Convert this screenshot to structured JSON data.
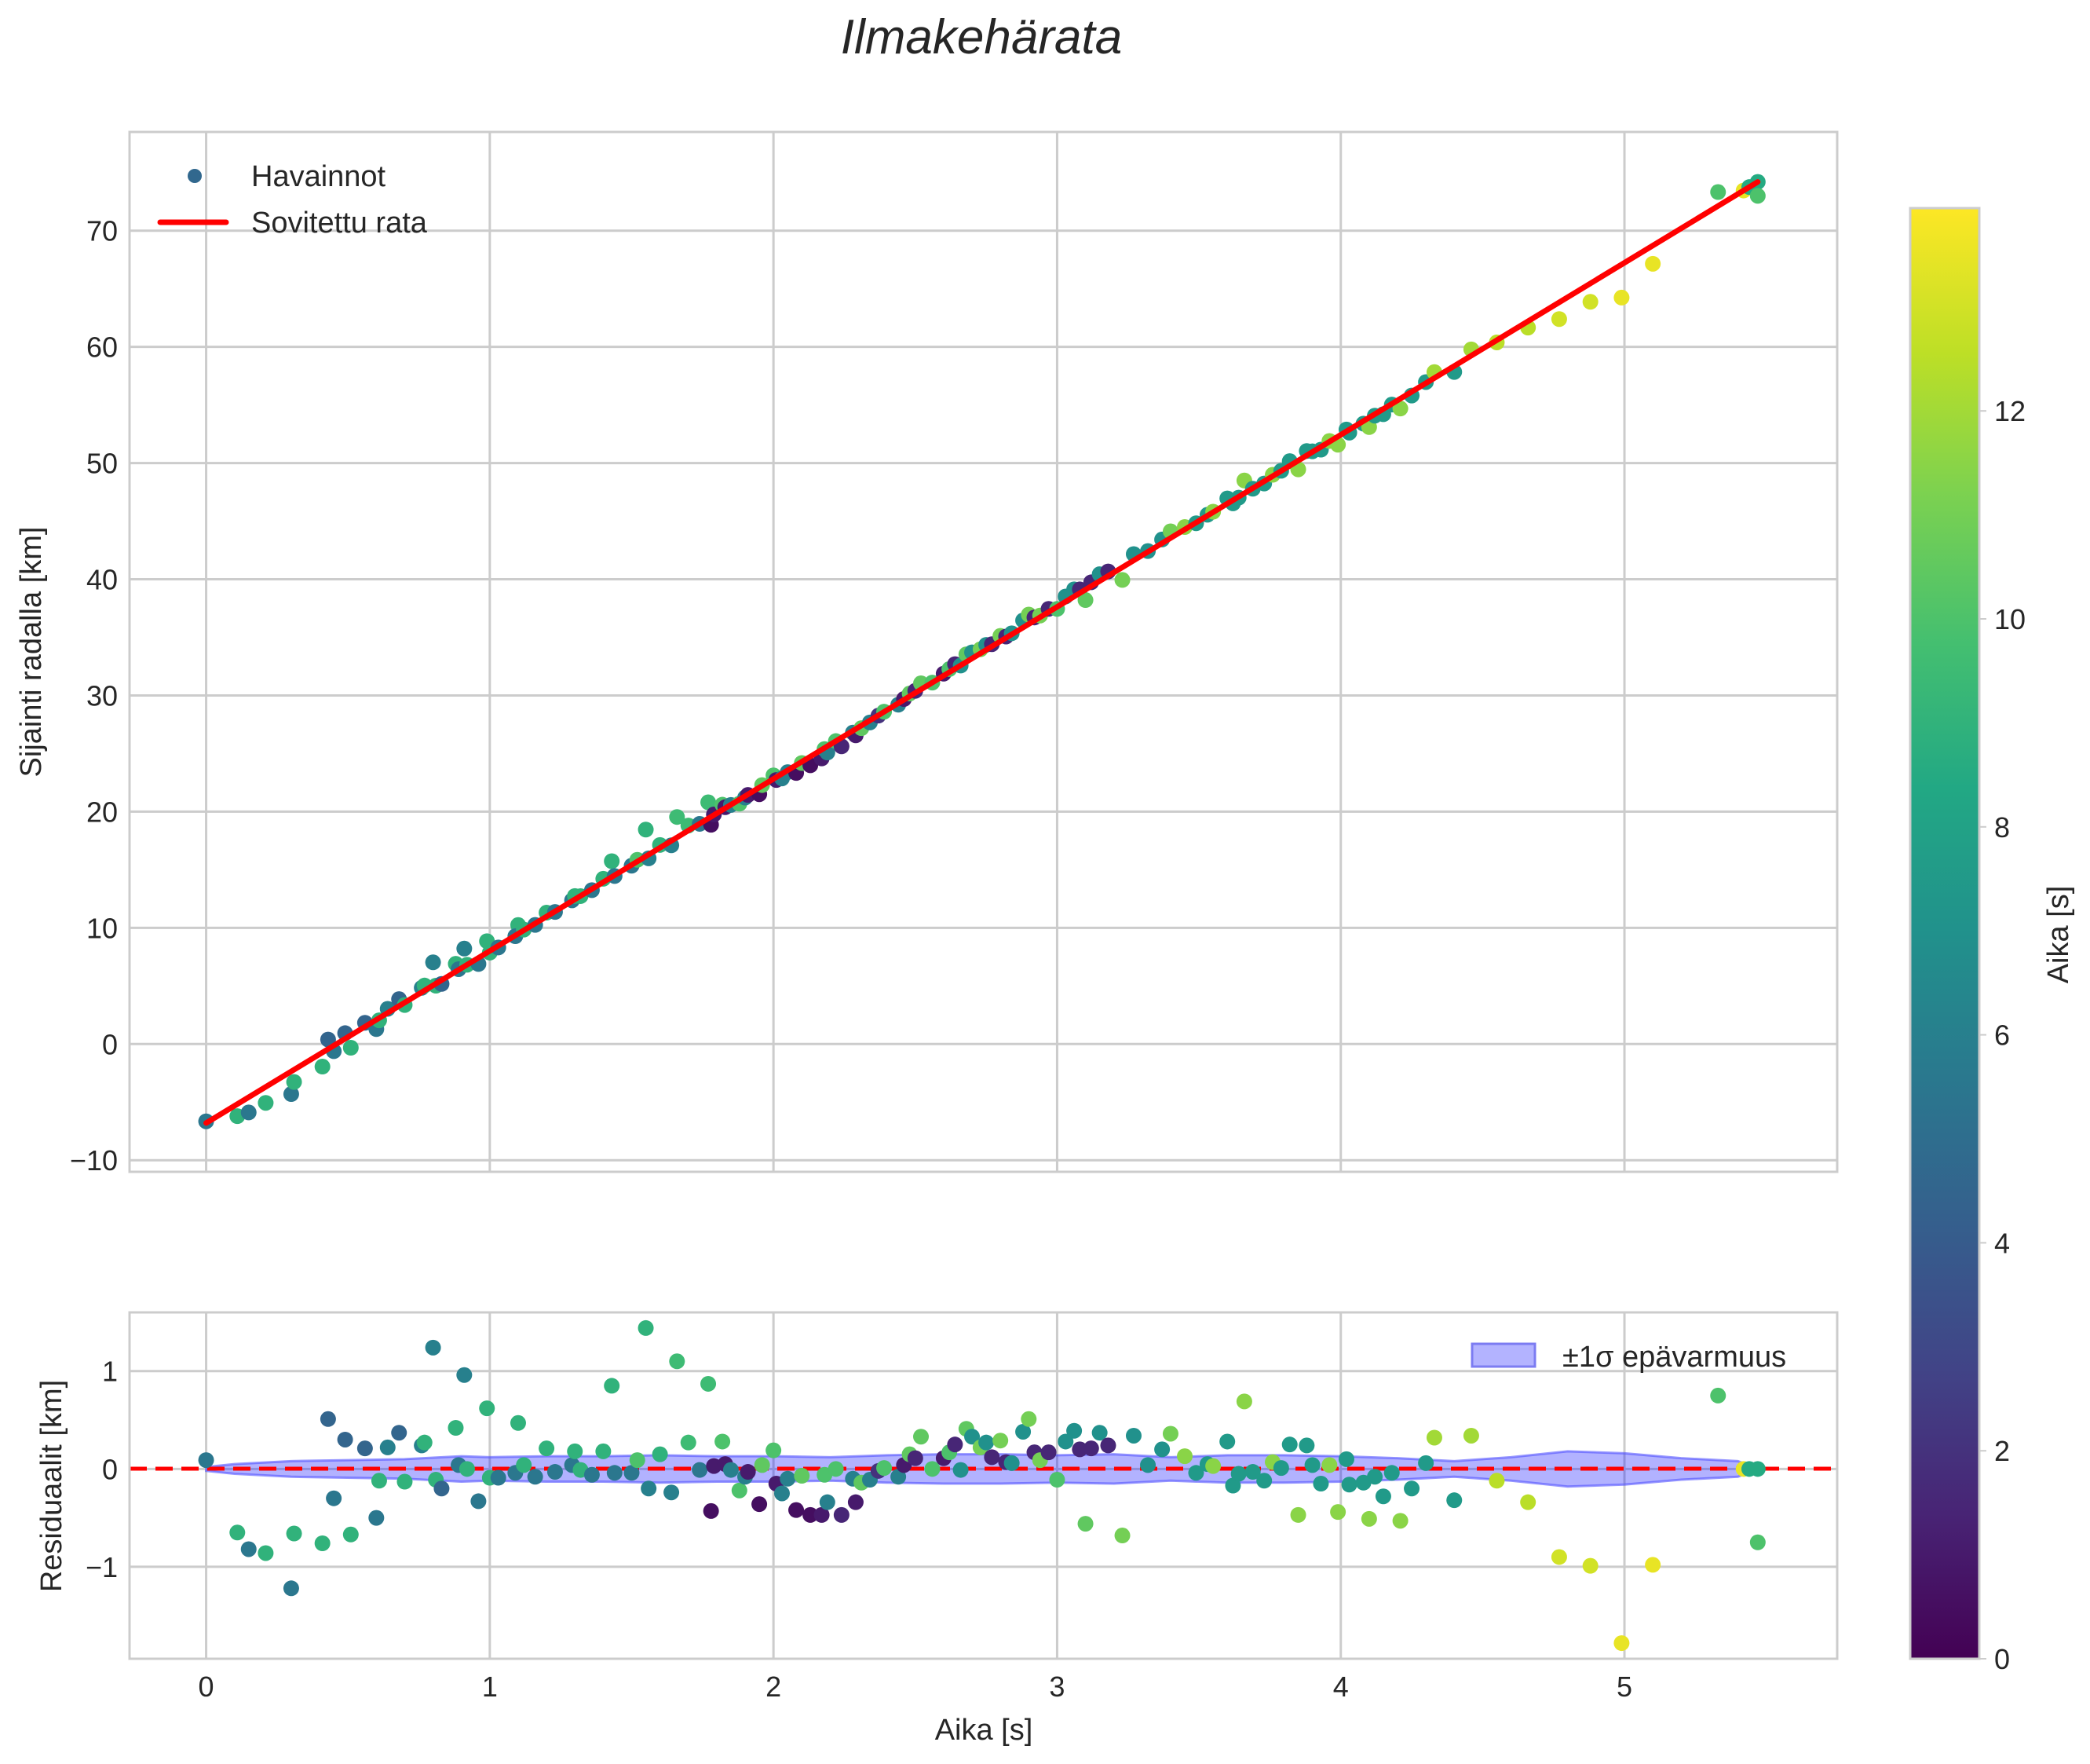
{
  "title": "Ilmakehärata",
  "chart_data": [
    {
      "type": "scatter",
      "panel": "main",
      "title": "Ilmakehärata",
      "xlabel": "",
      "ylabel": "Sijainti radalla [km]",
      "xlim": [
        -0.27,
        5.75
      ],
      "ylim": [
        -11,
        78.5
      ],
      "xticks": [
        0,
        1,
        2,
        3,
        4,
        5
      ],
      "yticks": [
        -10,
        0,
        10,
        20,
        30,
        40,
        50,
        60,
        70
      ],
      "grid": true,
      "legend": {
        "position": "upper left",
        "entries": [
          "Havainnot",
          "Sovitettu rata"
        ]
      },
      "fit_line": {
        "label": "Sovitettu rata",
        "color": "#ff0000",
        "x": [
          0,
          5.47
        ],
        "y": [
          -6.8,
          74.2
        ]
      },
      "series": [
        {
          "name": "Havainnot",
          "colormap": "viridis",
          "color_label": "Aika [s]",
          "color_range": [
            0,
            13.95
          ]
        }
      ]
    },
    {
      "type": "scatter",
      "panel": "residuals",
      "xlabel": "Aika [s]",
      "ylabel": "Residuaalit [km]",
      "xlim": [
        -0.27,
        5.75
      ],
      "ylim": [
        -1.94,
        1.6
      ],
      "xticks": [
        0,
        1,
        2,
        3,
        4,
        5
      ],
      "yticks": [
        -1,
        0,
        1
      ],
      "grid": true,
      "zero_line": {
        "y": 0,
        "style": "dashed",
        "color": "#ff0000"
      },
      "band": {
        "label": "±1σ epävarmuus",
        "color": "#0000ff",
        "alpha": 0.3,
        "x": [
          0,
          0.1,
          0.3,
          0.5,
          0.7,
          0.9,
          1.0,
          1.2,
          1.4,
          1.6,
          1.8,
          2.0,
          2.2,
          2.4,
          2.6,
          2.8,
          3.0,
          3.2,
          3.4,
          3.6,
          3.8,
          4.0,
          4.2,
          4.4,
          4.6,
          4.8,
          5.0,
          5.2,
          5.4,
          5.47
        ],
        "sigma": [
          0.02,
          0.05,
          0.08,
          0.09,
          0.1,
          0.13,
          0.12,
          0.13,
          0.13,
          0.14,
          0.13,
          0.13,
          0.12,
          0.14,
          0.15,
          0.15,
          0.14,
          0.15,
          0.12,
          0.14,
          0.14,
          0.13,
          0.11,
          0.08,
          0.12,
          0.18,
          0.16,
          0.11,
          0.08,
          0.0
        ]
      },
      "legend": {
        "position": "upper right",
        "entries": [
          "±1σ epävarmuus"
        ]
      },
      "points": [
        [
          0.0,
          0.09,
          5.5
        ],
        [
          0.11,
          -0.65,
          9.0
        ],
        [
          0.15,
          -0.82,
          5.5
        ],
        [
          0.21,
          -0.86,
          9.0
        ],
        [
          0.3,
          -1.22,
          5.5
        ],
        [
          0.31,
          -0.66,
          9.0
        ],
        [
          0.41,
          -0.76,
          9.0
        ],
        [
          0.43,
          0.51,
          4.5
        ],
        [
          0.45,
          -0.3,
          5.5
        ],
        [
          0.49,
          0.3,
          4.5
        ],
        [
          0.51,
          -0.67,
          9.0
        ],
        [
          0.56,
          0.21,
          4.5
        ],
        [
          0.6,
          -0.5,
          5.5
        ],
        [
          0.61,
          -0.12,
          9.0
        ],
        [
          0.64,
          0.22,
          6.0
        ],
        [
          0.68,
          0.37,
          4.5
        ],
        [
          0.7,
          -0.13,
          9.0
        ],
        [
          0.76,
          0.24,
          6.0
        ],
        [
          0.77,
          0.27,
          9.0
        ],
        [
          0.8,
          1.24,
          6.0
        ],
        [
          0.81,
          -0.11,
          9.0
        ],
        [
          0.83,
          -0.2,
          4.5
        ],
        [
          0.88,
          0.42,
          9.0
        ],
        [
          0.89,
          0.04,
          5.5
        ],
        [
          0.91,
          0.96,
          6.0
        ],
        [
          0.92,
          0.0,
          9.0
        ],
        [
          0.96,
          -0.33,
          5.5
        ],
        [
          0.99,
          0.62,
          9.0
        ],
        [
          1.0,
          -0.09,
          9.0
        ],
        [
          1.03,
          -0.09,
          5.5
        ],
        [
          1.1,
          0.47,
          9.0
        ],
        [
          1.09,
          -0.04,
          5.5
        ],
        [
          1.12,
          0.04,
          9.0
        ],
        [
          1.16,
          -0.08,
          5.5
        ],
        [
          1.2,
          0.21,
          9.0
        ],
        [
          1.23,
          -0.03,
          5.5
        ],
        [
          1.29,
          0.04,
          5.5
        ],
        [
          1.3,
          0.18,
          9.0
        ],
        [
          1.32,
          -0.01,
          9.0
        ],
        [
          1.36,
          -0.06,
          5.5
        ],
        [
          1.4,
          0.18,
          9.0
        ],
        [
          1.43,
          0.85,
          9.0
        ],
        [
          1.44,
          -0.04,
          5.5
        ],
        [
          1.5,
          -0.04,
          5.5
        ],
        [
          1.52,
          0.09,
          10.0
        ],
        [
          1.55,
          1.44,
          9.0
        ],
        [
          1.56,
          -0.2,
          6.0
        ],
        [
          1.6,
          0.15,
          9.0
        ],
        [
          1.64,
          -0.24,
          6.0
        ],
        [
          1.66,
          1.1,
          9.5
        ],
        [
          1.7,
          0.27,
          9.5
        ],
        [
          1.74,
          -0.01,
          5.5
        ],
        [
          1.77,
          0.87,
          9.5
        ],
        [
          1.78,
          -0.43,
          0.5
        ],
        [
          1.79,
          0.03,
          1.0
        ],
        [
          1.82,
          0.28,
          10.0
        ],
        [
          1.83,
          0.05,
          1.0
        ],
        [
          1.85,
          -0.01,
          6.0
        ],
        [
          1.88,
          -0.22,
          10.0
        ],
        [
          1.9,
          -0.08,
          6.0
        ],
        [
          1.91,
          -0.03,
          1.0
        ],
        [
          1.95,
          -0.36,
          0.5
        ],
        [
          1.96,
          0.04,
          10.5
        ],
        [
          2.0,
          0.19,
          10.0
        ],
        [
          2.01,
          -0.15,
          1.0
        ],
        [
          2.03,
          -0.25,
          6.0
        ],
        [
          2.05,
          -0.1,
          6.0
        ],
        [
          2.08,
          -0.42,
          0.5
        ],
        [
          2.1,
          -0.07,
          10.5
        ],
        [
          2.13,
          -0.47,
          0.5
        ],
        [
          2.17,
          -0.47,
          1.0
        ],
        [
          2.18,
          -0.06,
          10.0
        ],
        [
          2.19,
          -0.34,
          6.0
        ],
        [
          2.22,
          0.0,
          10.0
        ],
        [
          2.24,
          -0.47,
          1.5
        ],
        [
          2.28,
          -0.1,
          6.0
        ],
        [
          2.29,
          -0.34,
          1.0
        ],
        [
          2.31,
          -0.14,
          10.5
        ],
        [
          2.34,
          -0.11,
          6.0
        ],
        [
          2.37,
          -0.02,
          2.0
        ],
        [
          2.39,
          0.01,
          10.0
        ],
        [
          2.44,
          -0.08,
          6.0
        ],
        [
          2.46,
          0.04,
          1.0
        ],
        [
          2.48,
          0.15,
          10.5
        ],
        [
          2.5,
          0.11,
          1.5
        ],
        [
          2.52,
          0.33,
          10.5
        ],
        [
          2.56,
          0.0,
          10.0
        ],
        [
          2.6,
          0.11,
          1.0
        ],
        [
          2.62,
          0.17,
          10.0
        ],
        [
          2.64,
          0.25,
          1.5
        ],
        [
          2.66,
          -0.01,
          7.0
        ],
        [
          2.68,
          0.41,
          10.5
        ],
        [
          2.7,
          0.33,
          7.0
        ],
        [
          2.73,
          0.22,
          11.0
        ],
        [
          2.75,
          0.27,
          7.0
        ],
        [
          2.77,
          0.12,
          1.5
        ],
        [
          2.8,
          0.29,
          11.0
        ],
        [
          2.82,
          0.07,
          1.5
        ],
        [
          2.84,
          0.06,
          7.0
        ],
        [
          2.88,
          0.38,
          7.0
        ],
        [
          2.9,
          0.51,
          11.0
        ],
        [
          2.92,
          0.17,
          1.5
        ],
        [
          2.94,
          0.09,
          11.0
        ],
        [
          2.97,
          0.17,
          1.5
        ],
        [
          3.0,
          -0.11,
          10.0
        ],
        [
          3.03,
          0.28,
          7.0
        ],
        [
          3.06,
          0.39,
          7.0
        ],
        [
          3.08,
          0.2,
          1.5
        ],
        [
          3.12,
          0.21,
          1.5
        ],
        [
          3.15,
          0.37,
          7.0
        ],
        [
          3.18,
          0.24,
          1.5
        ],
        [
          3.27,
          0.34,
          7.0
        ],
        [
          3.1,
          -0.56,
          10.5
        ],
        [
          3.23,
          -0.68,
          11.0
        ],
        [
          3.32,
          0.04,
          7.0
        ],
        [
          3.37,
          0.2,
          7.0
        ],
        [
          3.4,
          0.36,
          11.0
        ],
        [
          3.45,
          0.13,
          11.5
        ],
        [
          3.49,
          -0.04,
          7.5
        ],
        [
          3.53,
          0.05,
          7.5
        ],
        [
          3.55,
          0.03,
          11.5
        ],
        [
          3.6,
          0.28,
          7.5
        ],
        [
          3.62,
          -0.17,
          7.5
        ],
        [
          3.64,
          -0.05,
          7.5
        ],
        [
          3.66,
          0.69,
          11.5
        ],
        [
          3.69,
          -0.03,
          7.5
        ],
        [
          3.73,
          -0.12,
          7.5
        ],
        [
          3.76,
          0.07,
          11.5
        ],
        [
          3.79,
          0.01,
          7.5
        ],
        [
          3.82,
          0.25,
          7.5
        ],
        [
          3.85,
          -0.47,
          11.5
        ],
        [
          3.88,
          0.24,
          7.5
        ],
        [
          3.9,
          0.04,
          7.5
        ],
        [
          3.93,
          -0.15,
          7.5
        ],
        [
          3.96,
          0.04,
          11.5
        ],
        [
          3.99,
          -0.44,
          11.5
        ],
        [
          4.02,
          0.1,
          7.5
        ],
        [
          4.03,
          -0.16,
          7.5
        ],
        [
          4.08,
          -0.14,
          7.5
        ],
        [
          4.1,
          -0.51,
          11.5
        ],
        [
          4.12,
          -0.08,
          7.5
        ],
        [
          4.15,
          -0.28,
          7.5
        ],
        [
          4.18,
          -0.04,
          7.5
        ],
        [
          4.21,
          -0.53,
          11.5
        ],
        [
          4.25,
          -0.2,
          7.5
        ],
        [
          4.3,
          0.06,
          7.5
        ],
        [
          4.33,
          0.32,
          12.0
        ],
        [
          4.4,
          -0.32,
          7.5
        ],
        [
          4.46,
          0.34,
          12.0
        ],
        [
          4.55,
          -0.12,
          12.5
        ],
        [
          4.66,
          -0.34,
          12.5
        ],
        [
          4.77,
          -0.9,
          13.0
        ],
        [
          4.88,
          -0.99,
          13.0
        ],
        [
          4.99,
          -1.78,
          13.5
        ],
        [
          5.1,
          -0.98,
          13.5
        ],
        [
          5.33,
          0.75,
          10.0
        ],
        [
          5.42,
          0.0,
          13.5
        ],
        [
          5.44,
          0.0,
          8.5
        ],
        [
          5.47,
          0.0,
          8.5
        ],
        [
          5.47,
          -0.75,
          10.0
        ]
      ]
    }
  ],
  "colorbar": {
    "label": "Aika [s]",
    "ticks": [
      0,
      2,
      4,
      6,
      8,
      10,
      12
    ],
    "min": 0,
    "max": 13.95,
    "colormap": "viridis"
  },
  "colors": {
    "fit_line": "#ff0000",
    "band_fill": "#b3b3ff",
    "band_edge": "#7c7cf2",
    "grid": "#cccccc",
    "frame": "#cccccc",
    "legend_marker": "#31688e"
  }
}
